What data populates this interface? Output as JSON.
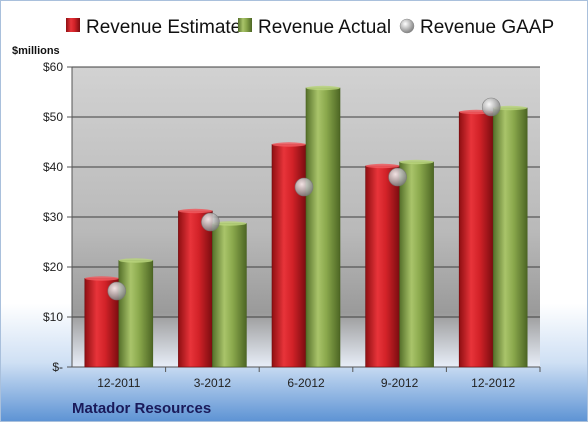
{
  "company": "Matador Resources",
  "chart_data": {
    "type": "bar",
    "categories": [
      "12-2011",
      "3-2012",
      "6-2012",
      "9-2012",
      "12-2012"
    ],
    "series": [
      {
        "name": "Revenue Estimate",
        "kind": "bar",
        "color": "#c8191f",
        "values": [
          17.7,
          31.2,
          44.5,
          40.2,
          51.0
        ]
      },
      {
        "name": "Revenue Actual",
        "kind": "bar",
        "color": "#7d9c3f",
        "values": [
          21.3,
          28.7,
          55.8,
          41.0,
          51.8
        ]
      },
      {
        "name": "Revenue GAAP",
        "kind": "marker",
        "color": "#b5b5b5",
        "values": [
          15.2,
          29.0,
          36.0,
          38.0,
          52.0
        ]
      }
    ],
    "ylabel": "$millions",
    "ylim": [
      0,
      60
    ],
    "yticks": [
      0,
      10,
      20,
      30,
      40,
      50,
      60
    ],
    "ytick_labels": [
      "$-",
      "$10",
      "$20",
      "$30",
      "$40",
      "$50",
      "$60"
    ],
    "grid": true,
    "legend": "top"
  }
}
